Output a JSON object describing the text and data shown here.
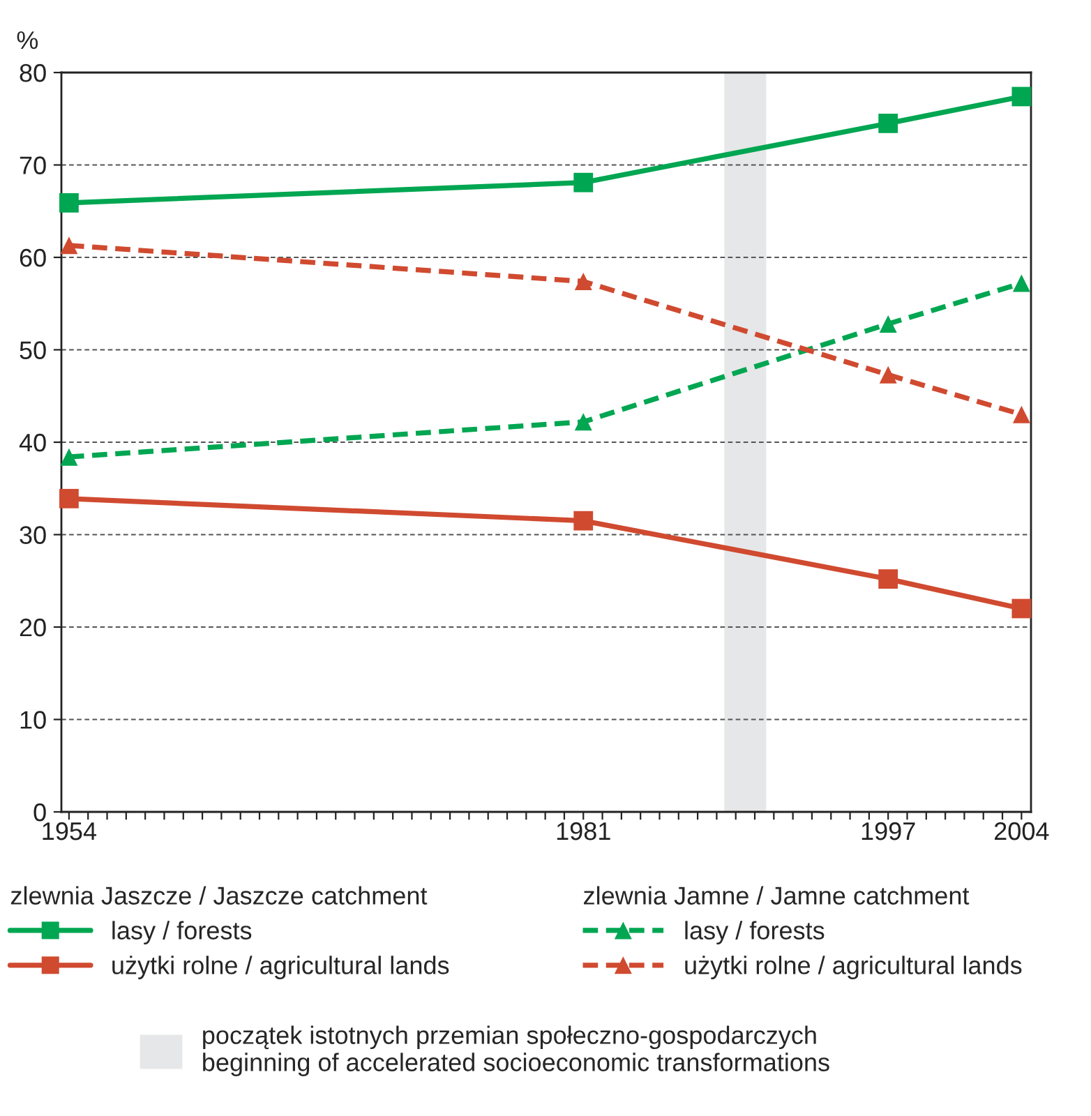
{
  "chart_data": {
    "type": "line",
    "ylabel": "%",
    "x": [
      1954,
      1981,
      1997,
      2004
    ],
    "series": [
      {
        "name": "lasy / forests",
        "color": "#00a651",
        "values": [
          65.9,
          68.1,
          74.5,
          77.4
        ],
        "marker": "square",
        "line_style": "solid"
      },
      {
        "name": "użytki rolne / agricultural lands",
        "color": "#d04a30",
        "values": [
          33.9,
          31.5,
          25.2,
          22.0
        ],
        "marker": "square",
        "line_style": "solid"
      },
      {
        "name": "lasy / forests",
        "color": "#00a651",
        "values": [
          38.4,
          42.2,
          52.8,
          57.2
        ],
        "marker": "triangle",
        "line_style": "dashed"
      },
      {
        "name": "użytki rolne / agricultural lands",
        "color": "#d04a30",
        "values": [
          61.3,
          57.4,
          47.3,
          43.0
        ],
        "marker": "triangle",
        "line_style": "dashed"
      }
    ],
    "annotations": [
      "zlewnia Jaszcze / Jaszcze catchment",
      "zlewnia Jamne / Jamne catchment"
    ],
    "bands": [
      {
        "axis": "x",
        "from": 1988.4,
        "to": 1990.6,
        "color": "#e6e7e8",
        "label": "początek istotnych przemian społeczno-gospodarczych\nbeginning of accelerated socioeconomic transformations"
      }
    ],
    "xlim": [
      1953.6,
      2004.5
    ],
    "xticks": [
      {
        "value": 1954,
        "label": "1954"
      },
      {
        "value": 1955,
        "label": null
      },
      {
        "value": 1956,
        "label": null
      },
      {
        "value": 1957,
        "label": null
      },
      {
        "value": 1958,
        "label": null
      },
      {
        "value": 1959,
        "label": null
      },
      {
        "value": 1960,
        "label": null
      },
      {
        "value": 1961,
        "label": null
      },
      {
        "value": 1962,
        "label": null
      },
      {
        "value": 1963,
        "label": null
      },
      {
        "value": 1964,
        "label": null
      },
      {
        "value": 1965,
        "label": null
      },
      {
        "value": 1966,
        "label": null
      },
      {
        "value": 1967,
        "label": null
      },
      {
        "value": 1968,
        "label": null
      },
      {
        "value": 1969,
        "label": null
      },
      {
        "value": 1970,
        "label": null
      },
      {
        "value": 1971,
        "label": null
      },
      {
        "value": 1972,
        "label": null
      },
      {
        "value": 1973,
        "label": null
      },
      {
        "value": 1974,
        "label": null
      },
      {
        "value": 1975,
        "label": null
      },
      {
        "value": 1976,
        "label": null
      },
      {
        "value": 1977,
        "label": null
      },
      {
        "value": 1978,
        "label": null
      },
      {
        "value": 1979,
        "label": null
      },
      {
        "value": 1980,
        "label": null
      },
      {
        "value": 1981,
        "label": "1981"
      },
      {
        "value": 1982,
        "label": null
      },
      {
        "value": 1983,
        "label": null
      },
      {
        "value": 1984,
        "label": null
      },
      {
        "value": 1985,
        "label": null
      },
      {
        "value": 1986,
        "label": null
      },
      {
        "value": 1987,
        "label": null
      },
      {
        "value": 1988,
        "label": null
      },
      {
        "value": 1989,
        "label": null
      },
      {
        "value": 1990,
        "label": null
      },
      {
        "value": 1991,
        "label": null
      },
      {
        "value": 1992,
        "label": null
      },
      {
        "value": 1993,
        "label": null
      },
      {
        "value": 1994,
        "label": null
      },
      {
        "value": 1995,
        "label": null
      },
      {
        "value": 1996,
        "label": null
      },
      {
        "value": 1997,
        "label": "1997"
      },
      {
        "value": 1998,
        "label": null
      },
      {
        "value": 1999,
        "label": null
      },
      {
        "value": 2000,
        "label": null
      },
      {
        "value": 2001,
        "label": null
      },
      {
        "value": 2002,
        "label": null
      },
      {
        "value": 2003,
        "label": null
      },
      {
        "value": 2004,
        "label": "2004"
      }
    ],
    "ylim": [
      0,
      80
    ],
    "yticks": [
      0,
      10,
      20,
      30,
      40,
      50,
      60,
      70,
      80
    ],
    "grid": "y",
    "legend": "bottom"
  }
}
